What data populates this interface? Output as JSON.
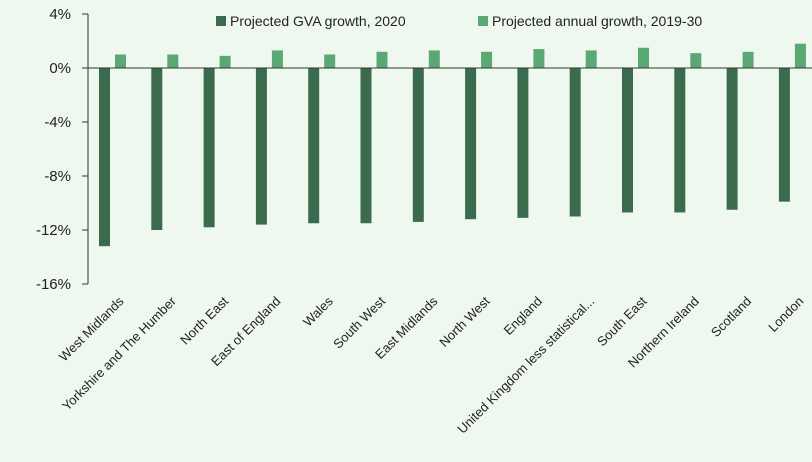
{
  "chart_data": {
    "type": "bar",
    "categories": [
      "West Midlands",
      "Yorkshire and The Humber",
      "North East",
      "East of England",
      "Wales",
      "South West",
      "East Midlands",
      "North West",
      "England",
      "United Kingdom less statistical...",
      "South East",
      "Northern Ireland",
      "Scotland",
      "London"
    ],
    "series": [
      {
        "name": "Projected GVA growth, 2020",
        "color": "#3a6b4c",
        "values": [
          -13.2,
          -12.0,
          -11.8,
          -11.6,
          -11.5,
          -11.5,
          -11.4,
          -11.2,
          -11.1,
          -11.0,
          -10.7,
          -10.7,
          -10.5,
          -9.9
        ]
      },
      {
        "name": "Projected annual growth, 2019-30",
        "color": "#5aa874",
        "values": [
          1.0,
          1.0,
          0.9,
          1.3,
          1.0,
          1.2,
          1.3,
          1.2,
          1.4,
          1.3,
          1.5,
          1.1,
          1.2,
          1.8
        ]
      }
    ],
    "yticks": [
      "4%",
      "0%",
      "-4%",
      "-8%",
      "-12%",
      "-16%"
    ],
    "ytick_values": [
      4,
      0,
      -4,
      -8,
      -12,
      -16
    ],
    "ylim": [
      -16,
      4
    ],
    "legend_position": "top",
    "grid": false,
    "title": "",
    "xlabel": "",
    "ylabel": ""
  }
}
